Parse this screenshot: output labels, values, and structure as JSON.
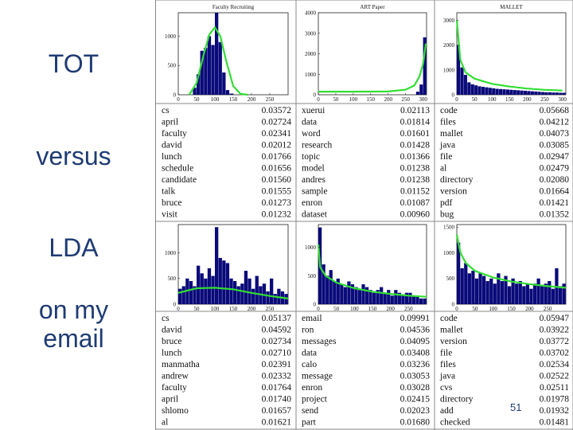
{
  "side_labels": {
    "l1": "TOT",
    "l2": "versus",
    "l3": "LDA",
    "l4": "on my",
    "l5": "email"
  },
  "page_number": "51",
  "colors": {
    "bar": "#0a0a7a",
    "curve": "#33dd33",
    "label": "#1f3b73",
    "frame": "#888888"
  },
  "chart_data": [
    {
      "type": "bar",
      "name": "tot-faculty-recruiting",
      "title": "Faculty Recruiting",
      "xlim": [
        0,
        300
      ],
      "ylim": [
        0,
        1400
      ],
      "xticks": [
        0,
        50,
        100,
        150,
        200,
        250
      ],
      "yticks": [
        0,
        500,
        1000
      ],
      "bin_width": 10,
      "x": [
        40,
        50,
        60,
        70,
        80,
        90,
        100,
        110,
        120,
        130,
        140
      ],
      "values": [
        120,
        350,
        750,
        800,
        1000,
        850,
        1400,
        900,
        380,
        80,
        20
      ],
      "curve": [
        [
          30,
          0
        ],
        [
          50,
          200
        ],
        [
          70,
          700
        ],
        [
          85,
          1030
        ],
        [
          100,
          1150
        ],
        [
          115,
          1000
        ],
        [
          130,
          600
        ],
        [
          150,
          150
        ],
        [
          170,
          15
        ],
        [
          190,
          0
        ]
      ]
    },
    {
      "type": "bar",
      "name": "tot-art-paper",
      "title": "ART Paper",
      "xlim": [
        0,
        310
      ],
      "ylim": [
        0,
        4000
      ],
      "xticks": [
        0,
        50,
        100,
        150,
        200,
        250,
        300
      ],
      "yticks": [
        0,
        1000,
        2000,
        3000,
        4000
      ],
      "bin_width": 10,
      "x": [
        280,
        290,
        300
      ],
      "values": [
        150,
        500,
        2800
      ],
      "curve": [
        [
          0,
          150
        ],
        [
          100,
          150
        ],
        [
          200,
          160
        ],
        [
          250,
          250
        ],
        [
          275,
          450
        ],
        [
          290,
          900
        ],
        [
          300,
          1500
        ],
        [
          308,
          2500
        ]
      ]
    },
    {
      "type": "bar",
      "name": "tot-mallet",
      "title": "MALLET",
      "xlim": [
        0,
        310
      ],
      "ylim": [
        0,
        3300
      ],
      "xticks": [
        0,
        50,
        100,
        150,
        200,
        250,
        300
      ],
      "yticks": [
        0,
        1000,
        2000,
        3000
      ],
      "bin_width": 10,
      "x": [
        0,
        10,
        20,
        30,
        40,
        50,
        60,
        70,
        80,
        90,
        100,
        110,
        120,
        130,
        140,
        150,
        160,
        170,
        180,
        190,
        200,
        210,
        220,
        230,
        240,
        250,
        260,
        270,
        280,
        290,
        300
      ],
      "values": [
        2000,
        1100,
        800,
        500,
        420,
        380,
        340,
        320,
        300,
        280,
        260,
        240,
        230,
        220,
        210,
        200,
        190,
        180,
        170,
        160,
        150,
        140,
        130,
        120,
        110,
        100,
        100,
        90,
        90,
        80,
        80
      ],
      "curve": [
        [
          0,
          3000
        ],
        [
          10,
          1400
        ],
        [
          25,
          900
        ],
        [
          50,
          650
        ],
        [
          100,
          440
        ],
        [
          150,
          330
        ],
        [
          200,
          250
        ],
        [
          250,
          200
        ],
        [
          300,
          170
        ]
      ]
    },
    {
      "type": "table",
      "name": "tot-table-faculty-recruiting",
      "rows": [
        [
          "cs",
          "0.03572"
        ],
        [
          "april",
          "0.02724"
        ],
        [
          "faculty",
          "0.02341"
        ],
        [
          "david",
          "0.02012"
        ],
        [
          "lunch",
          "0.01766"
        ],
        [
          "schedule",
          "0.01656"
        ],
        [
          "candidate",
          "0.01560"
        ],
        [
          "talk",
          "0.01555"
        ],
        [
          "bruce",
          "0.01273"
        ],
        [
          "visit",
          "0.01232"
        ]
      ]
    },
    {
      "type": "table",
      "name": "tot-table-art-paper",
      "rows": [
        [
          "xuerui",
          "0.02113"
        ],
        [
          "data",
          "0.01814"
        ],
        [
          "word",
          "0.01601"
        ],
        [
          "research",
          "0.01428"
        ],
        [
          "topic",
          "0.01366"
        ],
        [
          "model",
          "0.01238"
        ],
        [
          "andres",
          "0.01238"
        ],
        [
          "sample",
          "0.01152"
        ],
        [
          "enron",
          "0.01087"
        ],
        [
          "dataset",
          "0.00960"
        ]
      ]
    },
    {
      "type": "table",
      "name": "tot-table-mallet",
      "rows": [
        [
          "code",
          "0.05668"
        ],
        [
          "files",
          "0.04212"
        ],
        [
          "mallet",
          "0.04073"
        ],
        [
          "java",
          "0.03085"
        ],
        [
          "file",
          "0.02947"
        ],
        [
          "al",
          "0.02479"
        ],
        [
          "directory",
          "0.02080"
        ],
        [
          "version",
          "0.01664"
        ],
        [
          "pdf",
          "0.01421"
        ],
        [
          "bug",
          "0.01352"
        ]
      ]
    },
    {
      "type": "bar",
      "name": "lda-faculty-recruiting",
      "xlim": [
        0,
        300
      ],
      "ylim": [
        0,
        1550
      ],
      "xticks": [
        0,
        50,
        100,
        150,
        200,
        250
      ],
      "yticks": [
        0,
        500,
        1000
      ],
      "bin_width": 10,
      "x": [
        0,
        10,
        20,
        30,
        40,
        50,
        60,
        70,
        80,
        90,
        100,
        110,
        120,
        130,
        140,
        150,
        160,
        170,
        180,
        190,
        200,
        210,
        220,
        230,
        240,
        250,
        260,
        270,
        280,
        290
      ],
      "values": [
        300,
        350,
        500,
        450,
        350,
        750,
        600,
        500,
        700,
        550,
        1500,
        900,
        850,
        800,
        500,
        450,
        350,
        400,
        650,
        500,
        300,
        550,
        350,
        400,
        250,
        500,
        200,
        300,
        250,
        200
      ],
      "curve": [
        [
          0,
          220
        ],
        [
          50,
          310
        ],
        [
          100,
          320
        ],
        [
          150,
          290
        ],
        [
          200,
          220
        ],
        [
          250,
          160
        ],
        [
          300,
          110
        ]
      ]
    },
    {
      "type": "bar",
      "name": "lda-art-paper",
      "xlim": [
        0,
        300
      ],
      "ylim": [
        0,
        1400
      ],
      "xticks": [
        0,
        50,
        100,
        150,
        200,
        250
      ],
      "yticks": [
        0,
        500,
        1000
      ],
      "bin_width": 10,
      "x": [
        0,
        10,
        20,
        30,
        40,
        50,
        60,
        70,
        80,
        90,
        100,
        110,
        120,
        130,
        140,
        150,
        160,
        170,
        180,
        190,
        200,
        210,
        220,
        230,
        240,
        250,
        260,
        270,
        280,
        290
      ],
      "values": [
        1350,
        700,
        500,
        600,
        400,
        450,
        350,
        300,
        400,
        350,
        300,
        250,
        350,
        300,
        250,
        200,
        250,
        300,
        200,
        250,
        150,
        250,
        200,
        150,
        200,
        200,
        150,
        150,
        100,
        100
      ],
      "curve": [
        [
          0,
          1050
        ],
        [
          5,
          650
        ],
        [
          20,
          500
        ],
        [
          50,
          380
        ],
        [
          100,
          280
        ],
        [
          150,
          220
        ],
        [
          200,
          180
        ],
        [
          250,
          150
        ],
        [
          300,
          130
        ]
      ]
    },
    {
      "type": "bar",
      "name": "lda-mallet",
      "xlim": [
        0,
        300
      ],
      "ylim": [
        0,
        1550
      ],
      "xticks": [
        0,
        50,
        100,
        150,
        200,
        250
      ],
      "yticks": [
        0,
        500,
        1000,
        1500
      ],
      "bin_width": 10,
      "x": [
        0,
        10,
        20,
        30,
        40,
        50,
        60,
        70,
        80,
        90,
        100,
        110,
        120,
        130,
        140,
        150,
        160,
        170,
        180,
        190,
        200,
        210,
        220,
        230,
        240,
        250,
        260,
        270,
        280,
        290
      ],
      "values": [
        1200,
        700,
        800,
        600,
        650,
        500,
        600,
        550,
        450,
        500,
        400,
        600,
        450,
        550,
        350,
        500,
        400,
        450,
        350,
        400,
        300,
        400,
        500,
        350,
        400,
        450,
        300,
        700,
        350,
        400
      ],
      "curve": [
        [
          0,
          1350
        ],
        [
          10,
          1000
        ],
        [
          25,
          800
        ],
        [
          50,
          650
        ],
        [
          100,
          520
        ],
        [
          150,
          440
        ],
        [
          200,
          390
        ],
        [
          250,
          350
        ],
        [
          300,
          320
        ]
      ]
    },
    {
      "type": "table",
      "name": "lda-table-faculty-recruiting",
      "rows": [
        [
          "cs",
          "0.05137"
        ],
        [
          "david",
          "0.04592"
        ],
        [
          "bruce",
          "0.02734"
        ],
        [
          "lunch",
          "0.02710"
        ],
        [
          "manmatha",
          "0.02391"
        ],
        [
          "andrew",
          "0.02332"
        ],
        [
          "faculty",
          "0.01764"
        ],
        [
          "april",
          "0.01740"
        ],
        [
          "shlomo",
          "0.01657"
        ],
        [
          "al",
          "0.01621"
        ]
      ]
    },
    {
      "type": "table",
      "name": "lda-table-art-paper",
      "rows": [
        [
          "email",
          "0.09991"
        ],
        [
          "ron",
          "0.04536"
        ],
        [
          "messages",
          "0.04095"
        ],
        [
          "data",
          "0.03408"
        ],
        [
          "calo",
          "0.03236"
        ],
        [
          "message",
          "0.03053"
        ],
        [
          "enron",
          "0.03028"
        ],
        [
          "project",
          "0.02415"
        ],
        [
          "send",
          "0.02023"
        ],
        [
          "part",
          "0.01680"
        ]
      ]
    },
    {
      "type": "table",
      "name": "lda-table-mallet",
      "rows": [
        [
          "code",
          "0.05947"
        ],
        [
          "mallet",
          "0.03922"
        ],
        [
          "version",
          "0.03772"
        ],
        [
          "file",
          "0.03702"
        ],
        [
          "files",
          "0.02534"
        ],
        [
          "java",
          "0.02522"
        ],
        [
          "cvs",
          "0.02511"
        ],
        [
          "directory",
          "0.01978"
        ],
        [
          "add",
          "0.01932"
        ],
        [
          "checked",
          "0.01481"
        ]
      ]
    }
  ]
}
